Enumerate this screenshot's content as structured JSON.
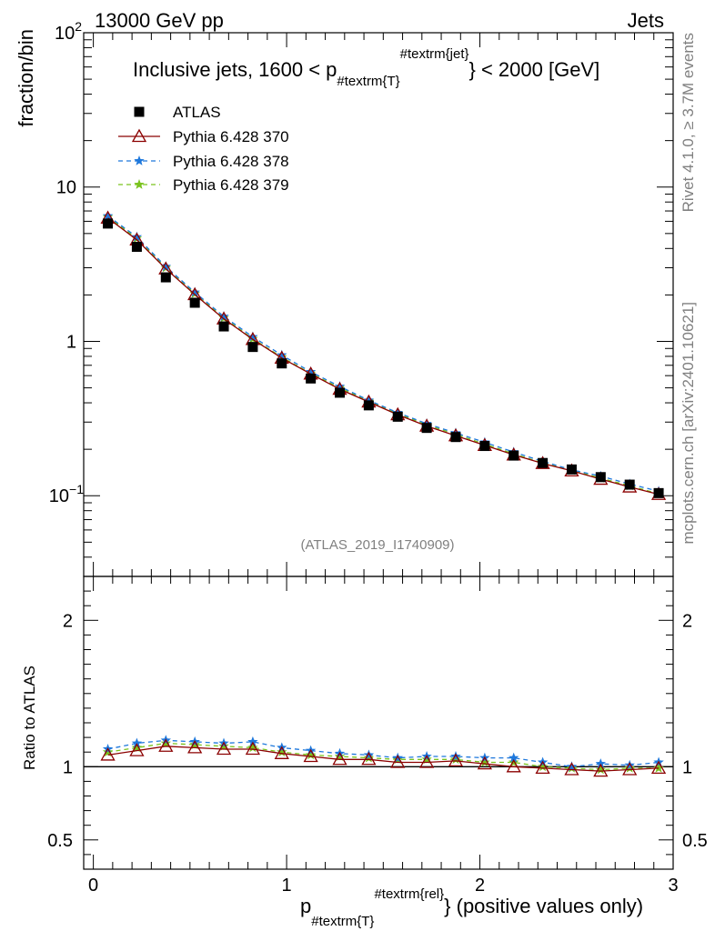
{
  "header": {
    "left": "13000 GeV pp",
    "right": "Jets"
  },
  "side": {
    "rivet": "Rivet 4.1.0, ≥ 3.7M events",
    "mcplots": "mcplots.cern.ch [arXiv:2401.10621]"
  },
  "colors": {
    "atlas": "#000000",
    "p370": "#8b0000",
    "p378": "#1e78dc",
    "p379": "#7ac31e"
  },
  "chart_data": {
    "type": "line",
    "title": "Inclusive jets, 1600 < p_{#textrm{T}}^{#textrm{jet}} < 2000 [GeV]",
    "title_main": "Inclusive jets, 1600 < p",
    "title_sub": "#textrm{T}",
    "title_sup": "#textrm{jet}",
    "title_tail": "} < 2000 [GeV]",
    "ylabel": "fraction/bin",
    "ratio_ylabel": "Ratio to ATLAS",
    "xlabel_main": "p",
    "xlabel_sub": "#textrm{T}",
    "xlabel_sup": "#textrm{rel}",
    "xlabel_tail": "} (positive values only)",
    "watermark": "(ATLAS_2019_I1740909)",
    "xlim": [
      -0.05,
      3.0
    ],
    "ylim": [
      0.03,
      100
    ],
    "ratio_ylim": [
      0.3,
      2.3
    ],
    "yscale": "log",
    "x_ticks": [
      {
        "v": 0,
        "label": "0"
      },
      {
        "v": 1,
        "label": "1"
      },
      {
        "v": 2,
        "label": "2"
      },
      {
        "v": 3,
        "label": "3"
      }
    ],
    "y_ticks": [
      {
        "v": 100,
        "label": "10",
        "sup": "2"
      },
      {
        "v": 10,
        "label": "10",
        "sup": ""
      },
      {
        "v": 1,
        "label": "1",
        "sup": ""
      },
      {
        "v": 0.1,
        "label": "10",
        "sup": "−1"
      }
    ],
    "ratio_ticks": [
      {
        "v": 2,
        "label": "2"
      },
      {
        "v": 1,
        "label": "1"
      },
      {
        "v": 0.5,
        "label": "0.5"
      }
    ],
    "x": [
      0.075,
      0.225,
      0.375,
      0.525,
      0.675,
      0.825,
      0.975,
      1.125,
      1.275,
      1.425,
      1.575,
      1.725,
      1.875,
      2.025,
      2.175,
      2.325,
      2.475,
      2.625,
      2.775,
      2.925
    ],
    "series": [
      {
        "name": "ATLAS",
        "key": "atlas",
        "marker": "square",
        "values": [
          5.8,
          4.1,
          2.6,
          1.78,
          1.25,
          0.92,
          0.72,
          0.575,
          0.465,
          0.385,
          0.325,
          0.275,
          0.24,
          0.21,
          0.182,
          0.163,
          0.148,
          0.132,
          0.118,
          0.104
        ]
      },
      {
        "name": "Pythia 6.428 370",
        "key": "p370",
        "marker": "triangle",
        "dash": "",
        "values": [
          6.3,
          4.55,
          2.95,
          2.01,
          1.4,
          1.03,
          0.78,
          0.615,
          0.49,
          0.405,
          0.335,
          0.283,
          0.245,
          0.212,
          0.184,
          0.162,
          0.145,
          0.128,
          0.114,
          0.102
        ]
      },
      {
        "name": "Pythia 6.428 378",
        "key": "p378",
        "marker": "star",
        "dash": "5,4",
        "values": [
          6.5,
          4.75,
          3.05,
          2.08,
          1.45,
          1.07,
          0.815,
          0.635,
          0.51,
          0.415,
          0.345,
          0.293,
          0.255,
          0.222,
          0.192,
          0.167,
          0.147,
          0.134,
          0.119,
          0.107
        ]
      },
      {
        "name": "Pythia 6.428 379",
        "key": "p379",
        "marker": "star",
        "dash": "5,4",
        "values": [
          6.4,
          4.65,
          3.0,
          2.04,
          1.42,
          1.04,
          0.79,
          0.62,
          0.5,
          0.41,
          0.34,
          0.288,
          0.25,
          0.216,
          0.187,
          0.163,
          0.146,
          0.13,
          0.116,
          0.103
        ]
      }
    ],
    "ratios": {
      "p370": [
        1.08,
        1.11,
        1.14,
        1.13,
        1.12,
        1.12,
        1.09,
        1.07,
        1.05,
        1.05,
        1.03,
        1.03,
        1.04,
        1.02,
        1.0,
        0.99,
        0.98,
        0.97,
        0.98,
        0.99
      ],
      "p378": [
        1.12,
        1.16,
        1.18,
        1.17,
        1.16,
        1.17,
        1.13,
        1.11,
        1.09,
        1.08,
        1.06,
        1.07,
        1.07,
        1.06,
        1.06,
        1.03,
        1.0,
        1.02,
        1.01,
        1.03
      ],
      "p379": [
        1.1,
        1.13,
        1.16,
        1.15,
        1.14,
        1.13,
        1.1,
        1.08,
        1.07,
        1.06,
        1.05,
        1.05,
        1.05,
        1.03,
        1.03,
        1.0,
        0.99,
        0.98,
        0.99,
        0.99
      ]
    }
  }
}
